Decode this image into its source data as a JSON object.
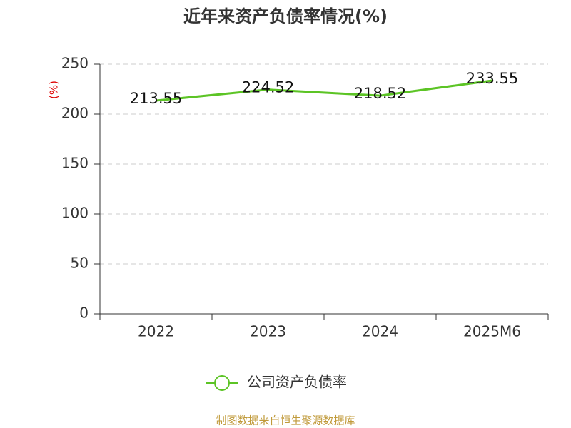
{
  "chart_data": {
    "type": "line",
    "title": "近年来资产负债率情况(%)",
    "y_label": "(%)",
    "categories": [
      "2022",
      "2023",
      "2024",
      "2025M6"
    ],
    "series": [
      {
        "name": "公司资产负债率",
        "color": "#5cc425",
        "values": [
          213.55,
          224.52,
          218.52,
          233.55
        ]
      }
    ],
    "ylim": [
      0,
      250
    ],
    "yticks": [
      0,
      50,
      100,
      150,
      200,
      250
    ],
    "grid": true,
    "source": "制图数据来自恒生聚源数据库"
  }
}
